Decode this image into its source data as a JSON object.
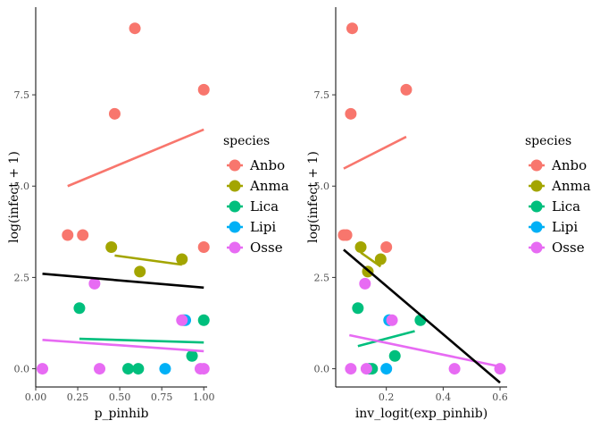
{
  "colors": {
    "Anbo": "#F8766D",
    "Anma": "#A3A500",
    "Lica": "#00BF7D",
    "Lipi": "#00B0F6",
    "Osse": "#E76BF3",
    "overall": "#000000"
  },
  "chart_data": [
    {
      "type": "scatter",
      "xlabel": "p_pinhib",
      "ylabel": "log(infect + 1)",
      "xlim": [
        0.0,
        1.02
      ],
      "ylim": [
        -0.5,
        9.9
      ],
      "xticks": [
        0.0,
        0.25,
        0.5,
        0.75,
        1.0
      ],
      "xtick_labels": [
        "0.00",
        "0.25",
        "0.50",
        "0.75",
        "1.00"
      ],
      "yticks": [
        0.0,
        2.5,
        5.0,
        7.5
      ],
      "ytick_labels": [
        "0.0",
        "2.5",
        "5.0",
        "7.5"
      ],
      "grid": false,
      "legend": "right",
      "series": [
        {
          "name": "Anbo",
          "points": [
            [
              0.19,
              3.66
            ],
            [
              0.28,
              3.66
            ],
            [
              0.47,
              6.98
            ],
            [
              0.59,
              9.32
            ],
            [
              1.0,
              7.64
            ],
            [
              1.0,
              3.33
            ]
          ],
          "fit": [
            [
              0.19,
              5.0
            ],
            [
              1.0,
              6.55
            ]
          ]
        },
        {
          "name": "Anma",
          "points": [
            [
              0.45,
              3.33
            ],
            [
              0.62,
              2.66
            ],
            [
              0.87,
              3.0
            ]
          ],
          "fit": [
            [
              0.47,
              3.1
            ],
            [
              0.87,
              2.85
            ]
          ]
        },
        {
          "name": "Lica",
          "points": [
            [
              0.26,
              1.66
            ],
            [
              0.55,
              0.0
            ],
            [
              0.61,
              0.0
            ],
            [
              0.88,
              1.33
            ],
            [
              0.93,
              0.35
            ],
            [
              1.0,
              1.33
            ]
          ],
          "fit": [
            [
              0.26,
              0.82
            ],
            [
              1.0,
              0.72
            ]
          ]
        },
        {
          "name": "Lipi",
          "points": [
            [
              0.77,
              0.0
            ],
            [
              0.89,
              1.33
            ]
          ],
          "fit": []
        },
        {
          "name": "Osse",
          "points": [
            [
              0.04,
              0.0
            ],
            [
              0.35,
              2.33
            ],
            [
              0.38,
              0.0
            ],
            [
              0.87,
              1.33
            ],
            [
              0.98,
              0.0
            ],
            [
              1.0,
              0.0
            ]
          ],
          "fit": [
            [
              0.04,
              0.79
            ],
            [
              1.0,
              0.48
            ]
          ]
        }
      ],
      "overall_fit": [
        [
          0.04,
          2.6
        ],
        [
          1.0,
          2.22
        ]
      ]
    },
    {
      "type": "scatter",
      "xlabel": "inv_logit(exp_pinhib)",
      "ylabel": "log(infect + 1)",
      "xlim": [
        0.022,
        0.625
      ],
      "ylim": [
        -0.5,
        9.9
      ],
      "xticks": [
        0.2,
        0.4,
        0.6
      ],
      "xtick_labels": [
        "0.2",
        "0.4",
        "0.6"
      ],
      "yticks": [
        0.0,
        2.5,
        5.0,
        7.5
      ],
      "ytick_labels": [
        "0.0",
        "2.5",
        "5.0",
        "7.5"
      ],
      "grid": false,
      "legend": "right",
      "series": [
        {
          "name": "Anbo",
          "points": [
            [
              0.05,
              3.66
            ],
            [
              0.06,
              3.66
            ],
            [
              0.08,
              9.32
            ],
            [
              0.075,
              6.98
            ],
            [
              0.27,
              7.64
            ],
            [
              0.2,
              3.33
            ]
          ],
          "fit": [
            [
              0.05,
              5.48
            ],
            [
              0.27,
              6.35
            ]
          ]
        },
        {
          "name": "Anma",
          "points": [
            [
              0.11,
              3.33
            ],
            [
              0.135,
              2.66
            ],
            [
              0.18,
              3.0
            ]
          ],
          "fit": [
            [
              0.11,
              3.18
            ],
            [
              0.18,
              2.8
            ]
          ]
        },
        {
          "name": "Lica",
          "points": [
            [
              0.1,
              1.66
            ],
            [
              0.14,
              0.0
            ],
            [
              0.15,
              0.0
            ],
            [
              0.21,
              1.33
            ],
            [
              0.23,
              0.35
            ],
            [
              0.32,
              1.33
            ]
          ],
          "fit": [
            [
              0.1,
              0.62
            ],
            [
              0.3,
              1.03
            ]
          ]
        },
        {
          "name": "Lipi",
          "points": [
            [
              0.2,
              0.0
            ],
            [
              0.21,
              1.33
            ]
          ],
          "fit": []
        },
        {
          "name": "Osse",
          "points": [
            [
              0.075,
              0.0
            ],
            [
              0.125,
              2.33
            ],
            [
              0.13,
              0.0
            ],
            [
              0.22,
              1.33
            ],
            [
              0.44,
              0.0
            ],
            [
              0.6,
              0.0
            ]
          ],
          "fit": [
            [
              0.07,
              0.92
            ],
            [
              0.6,
              0.06
            ]
          ]
        }
      ],
      "overall_fit": [
        [
          0.05,
          3.26
        ],
        [
          0.6,
          -0.38
        ]
      ]
    }
  ],
  "legend": {
    "title": "species",
    "items": [
      "Anbo",
      "Anma",
      "Lica",
      "Lipi",
      "Osse"
    ]
  }
}
